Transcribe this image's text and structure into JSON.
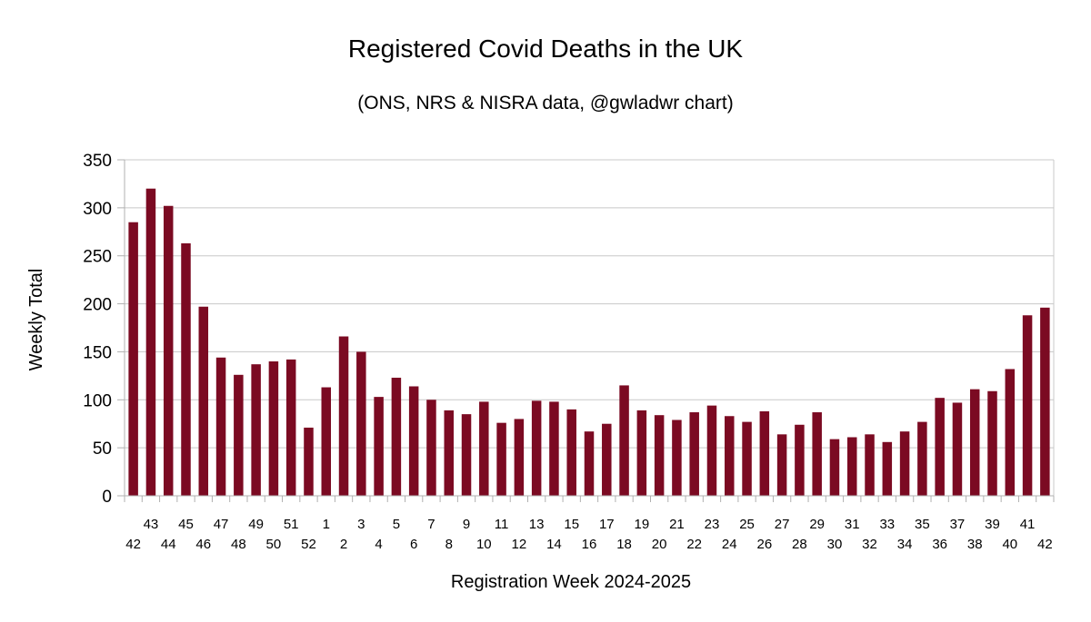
{
  "chart_data": {
    "type": "bar",
    "title": "Registered Covid Deaths in the UK",
    "subtitle": "(ONS, NRS & NISRA data, @gwladwr chart)",
    "xlabel": "Registration Week 2024-2025",
    "ylabel": "Weekly Total",
    "ylim": [
      0,
      350
    ],
    "yticks": [
      0,
      50,
      100,
      150,
      200,
      250,
      300,
      350
    ],
    "grid": true,
    "legend": "none",
    "bar_color": "#7b0a22",
    "categories": [
      "42",
      "43",
      "44",
      "45",
      "46",
      "47",
      "48",
      "49",
      "50",
      "51",
      "52",
      "1",
      "2",
      "3",
      "4",
      "5",
      "6",
      "7",
      "8",
      "9",
      "10",
      "11",
      "12",
      "13",
      "14",
      "15",
      "16",
      "17",
      "18",
      "19",
      "20",
      "21",
      "22",
      "23",
      "24",
      "25",
      "26",
      "27",
      "28",
      "29",
      "30",
      "31",
      "32",
      "33",
      "34",
      "35",
      "36",
      "37",
      "38",
      "39",
      "40",
      "41",
      "42"
    ],
    "values": [
      285,
      320,
      302,
      263,
      197,
      144,
      126,
      137,
      140,
      142,
      71,
      113,
      166,
      150,
      103,
      123,
      114,
      100,
      89,
      85,
      98,
      76,
      80,
      99,
      98,
      90,
      67,
      75,
      115,
      89,
      84,
      79,
      87,
      94,
      83,
      77,
      88,
      64,
      74,
      87,
      59,
      61,
      64,
      56,
      67,
      77,
      102,
      97,
      111,
      109,
      132,
      188,
      196
    ]
  }
}
